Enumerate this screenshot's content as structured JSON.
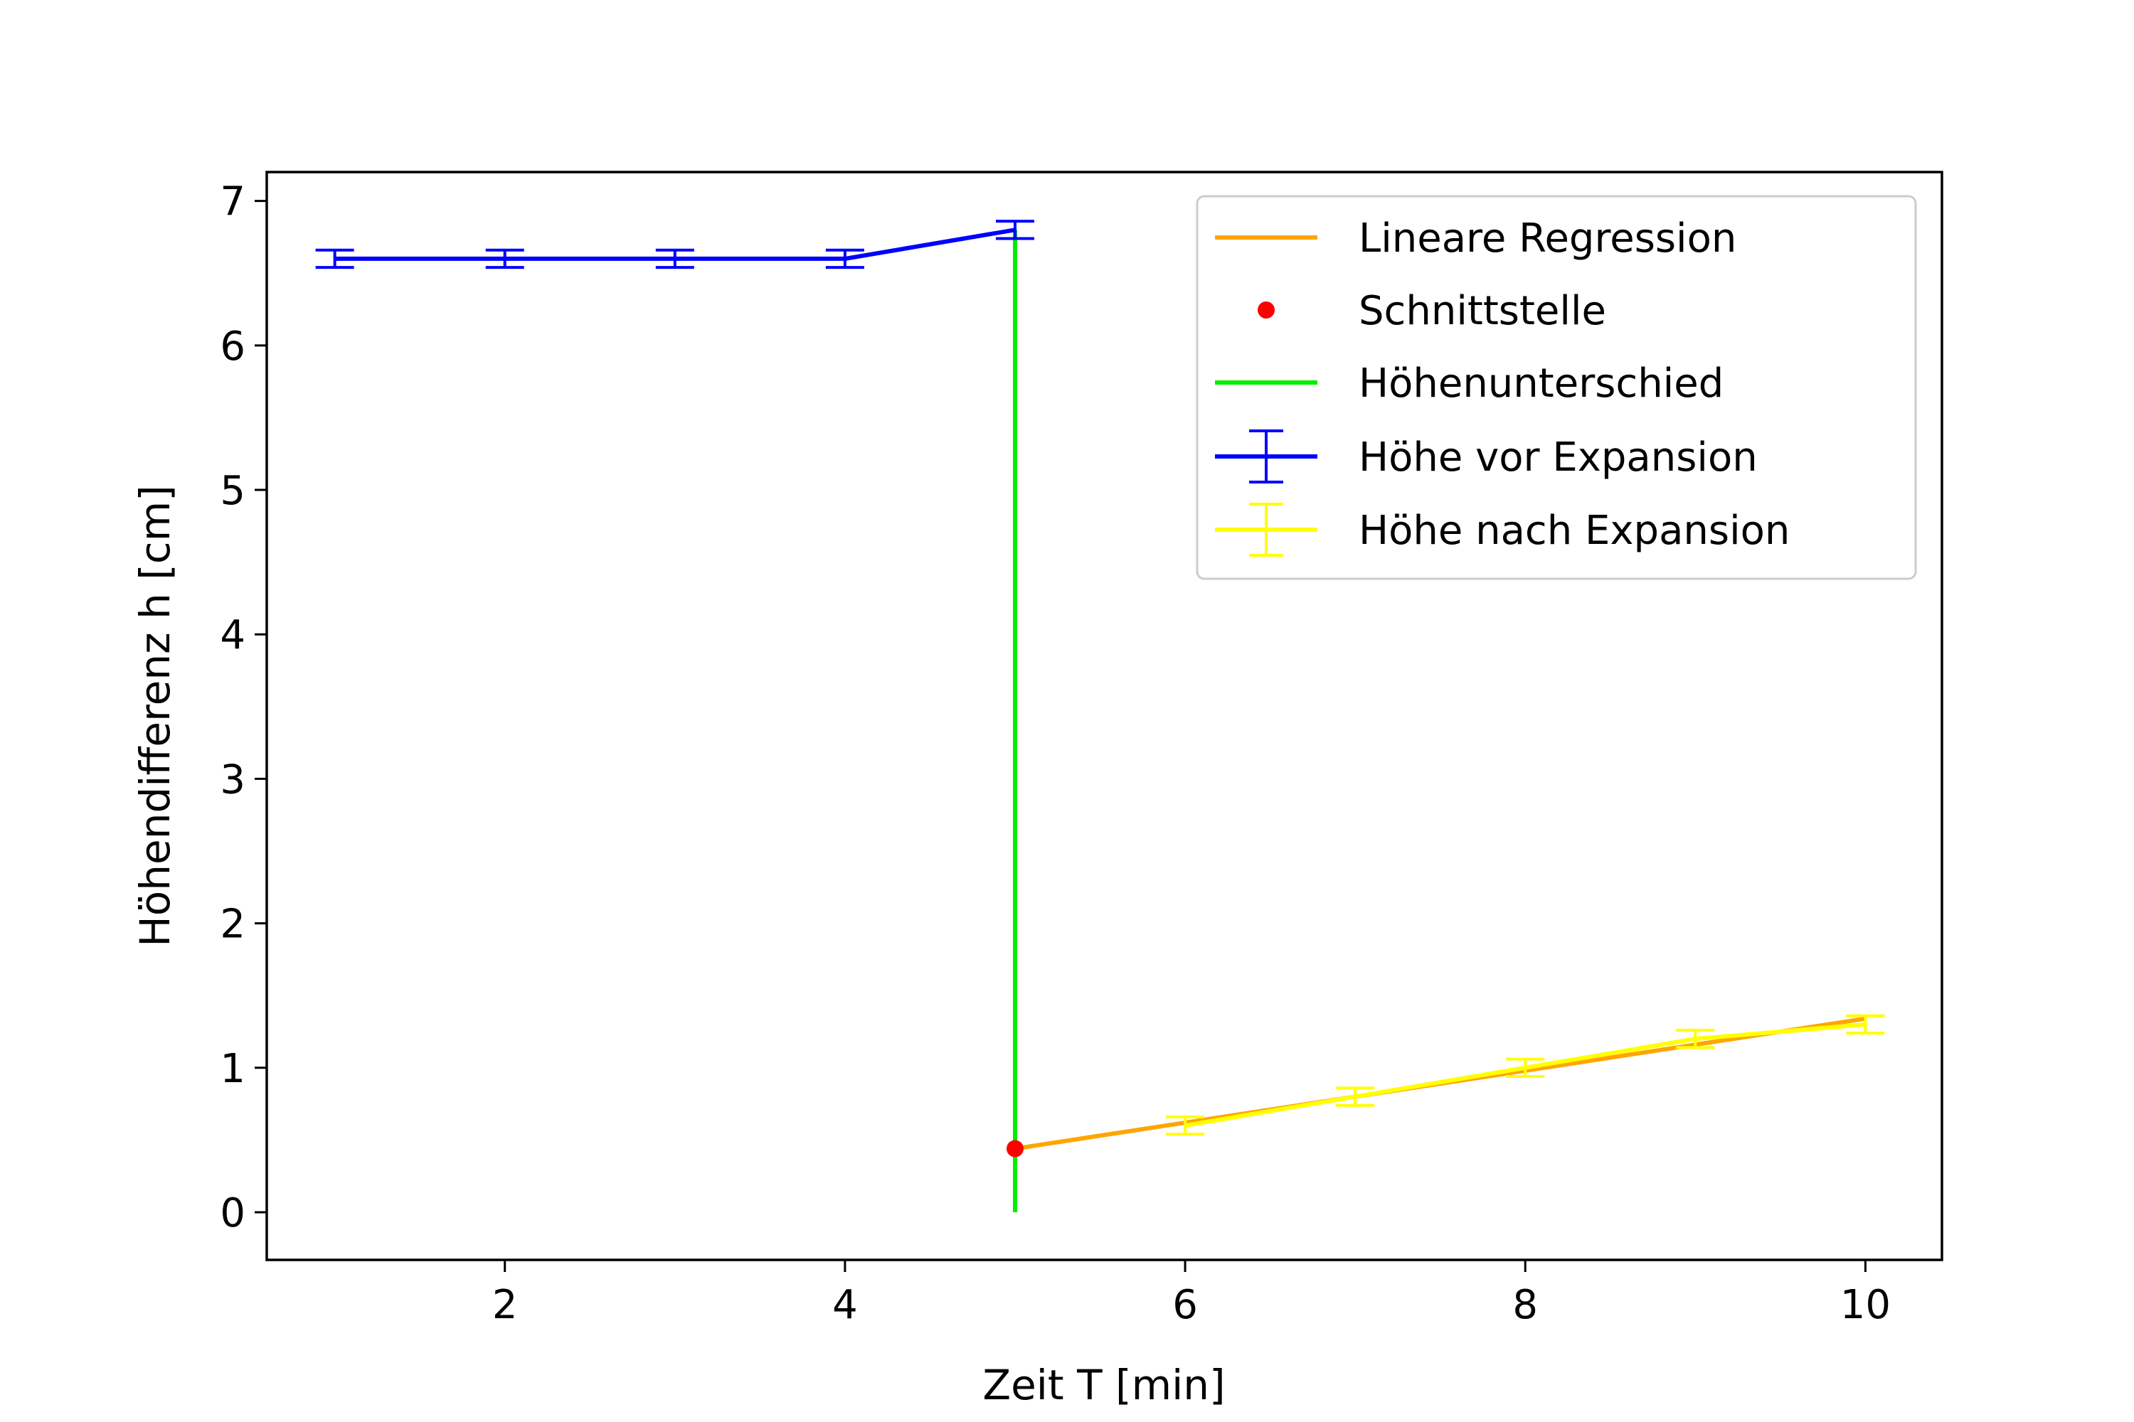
{
  "chart_data": {
    "type": "line",
    "title": "",
    "xlabel": "Zeit T [min]",
    "ylabel": "Höhendifferenz h [cm]",
    "xlim": [
      0.6,
      10.45
    ],
    "ylim": [
      -0.33,
      7.2
    ],
    "xticks": [
      2,
      4,
      6,
      8,
      10
    ],
    "yticks": [
      0,
      1,
      2,
      3,
      4,
      5,
      6,
      7
    ],
    "grid": false,
    "legend_position": "top-right",
    "series": [
      {
        "name": "Lineare Regression",
        "kind": "line",
        "color": "#ffa500",
        "x": [
          5,
          10
        ],
        "y": [
          0.44,
          1.34
        ]
      },
      {
        "name": "Schnittstelle",
        "kind": "point",
        "color": "#ff0000",
        "x": [
          5
        ],
        "y": [
          0.44
        ]
      },
      {
        "name": "Höhenunterschied",
        "kind": "vline",
        "color": "#00ee00",
        "x": [
          5,
          5
        ],
        "y": [
          0,
          6.8
        ]
      },
      {
        "name": "Höhe vor Expansion",
        "kind": "errorbar",
        "color": "#0000ff",
        "x": [
          1,
          2,
          3,
          4,
          5
        ],
        "y": [
          6.6,
          6.6,
          6.6,
          6.6,
          6.8
        ],
        "yerr": 0.06
      },
      {
        "name": "Höhe nach Expansion",
        "kind": "errorbar",
        "color": "#ffff00",
        "x": [
          6,
          7,
          8,
          9,
          10
        ],
        "y": [
          0.6,
          0.8,
          1.0,
          1.2,
          1.3
        ],
        "yerr": 0.06
      }
    ]
  }
}
